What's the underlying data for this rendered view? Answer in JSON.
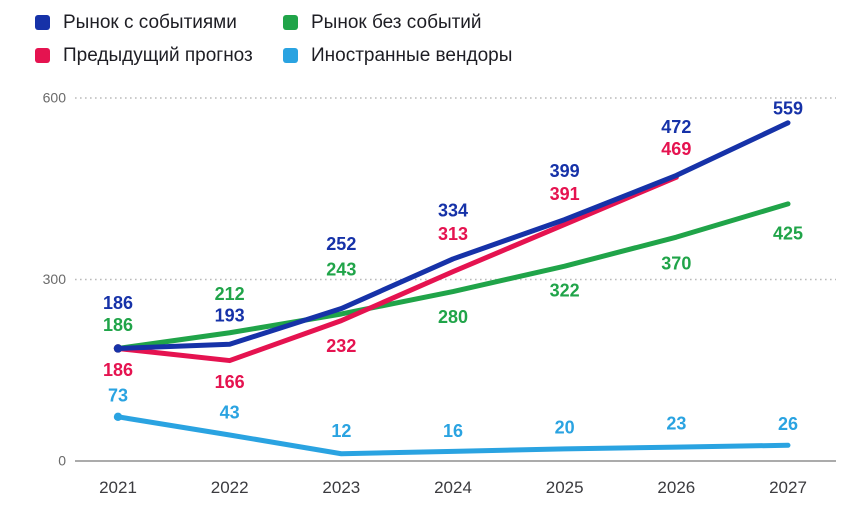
{
  "chart_data": {
    "type": "line",
    "title": "",
    "x_categories": [
      "2021",
      "2022",
      "2023",
      "2024",
      "2025",
      "2026",
      "2027"
    ],
    "ylim": [
      0,
      600
    ],
    "yticks": [
      0,
      300,
      600
    ],
    "grid": "horizontal-dotted-at-300-and-600-solid-baseline-at-0",
    "legend_position": "top-left-two-columns",
    "legend_columns": [
      [
        0,
        1
      ],
      [
        2,
        3
      ]
    ],
    "series": [
      {
        "name": "Рынок с событиями",
        "color": "#1632A8",
        "values": [
          186,
          193,
          252,
          334,
          399,
          472,
          559
        ],
        "label_dy": [
          -45,
          -28,
          -64,
          -48,
          -48,
          -48,
          -14
        ]
      },
      {
        "name": "Предыдущий прогноз",
        "color": "#E51350",
        "values": [
          186,
          166,
          232,
          313,
          391,
          469
        ],
        "label_dy": [
          22,
          22,
          26,
          -37,
          -30,
          -28
        ]
      },
      {
        "name": "Рынок без событий",
        "color": "#20A449",
        "values": [
          186,
          212,
          243,
          280,
          322,
          370,
          425
        ],
        "label_dy": [
          -23,
          -38,
          -44,
          26,
          25,
          27,
          30
        ]
      },
      {
        "name": "Иностранные вендоры",
        "color": "#2AA3E1",
        "values": [
          73,
          43,
          12,
          16,
          20,
          23,
          26
        ],
        "label_dy": [
          -21,
          -22,
          -22,
          -20,
          -21,
          -23,
          -21
        ]
      }
    ],
    "colors": {
      "axis_line": "#8f8f8f",
      "grid_line": "#bababa",
      "tick_label": "#6a6a6a",
      "x_label": "#3b3b3f"
    }
  }
}
